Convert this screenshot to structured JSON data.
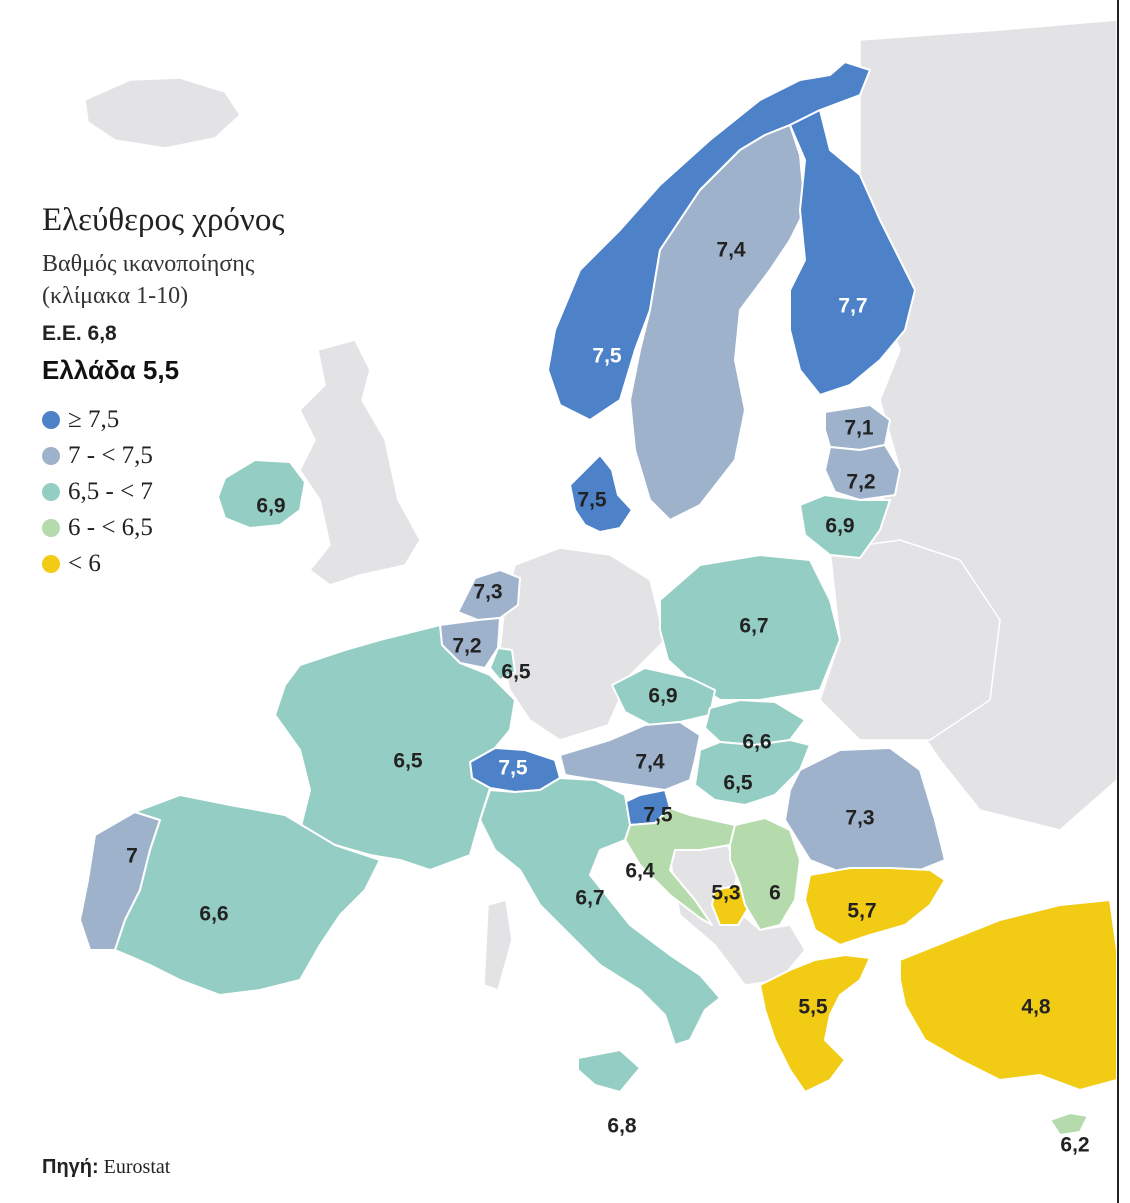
{
  "title": "Ελεύθερος χρόνος",
  "subtitle_line1": "Βαθμός ικανοποίησης",
  "subtitle_line2": "(κλίμακα 1-10)",
  "eu_value": "Ε.Ε. 6,8",
  "greece_value": "Ελλάδα 5,5",
  "legend": [
    {
      "label": "≥ 7,5",
      "color": "#4d82c8"
    },
    {
      "label": "7 - < 7,5",
      "color": "#9eb2cc"
    },
    {
      "label": "6,5 - < 7",
      "color": "#94cdc3"
    },
    {
      "label": "6 - < 6,5",
      "color": "#b5dbad"
    },
    {
      "label": "< 6",
      "color": "#f2cb14"
    }
  ],
  "source_label": "Πηγή:",
  "source_value": "Eurostat",
  "countries": [
    {
      "value": "7,5",
      "color": "#4d82c8"
    },
    {
      "value": "7,4",
      "color": "#9eb2cc"
    },
    {
      "value": "7,7",
      "color": "#4d82c8"
    },
    {
      "value": "7,1",
      "color": "#9eb2cc"
    },
    {
      "value": "7,2",
      "color": "#9eb2cc"
    },
    {
      "value": "6,9",
      "color": "#94cdc3"
    },
    {
      "value": "7,5",
      "color": "#4d82c8"
    },
    {
      "value": "6,9",
      "color": "#94cdc3"
    },
    {
      "value": "7,3",
      "color": "#9eb2cc"
    },
    {
      "value": "7,2",
      "color": "#9eb2cc"
    },
    {
      "value": "6,5",
      "color": "#94cdc3"
    },
    {
      "value": "6,7",
      "color": "#94cdc3"
    },
    {
      "value": "6,9",
      "color": "#94cdc3"
    },
    {
      "value": "6,6",
      "color": "#94cdc3"
    },
    {
      "value": "7,4",
      "color": "#9eb2cc"
    },
    {
      "value": "6,5",
      "color": "#94cdc3"
    },
    {
      "value": "7,5",
      "color": "#4d82c8"
    },
    {
      "value": "6,5",
      "color": "#94cdc3"
    },
    {
      "value": "7,5",
      "color": "#4d82c8"
    },
    {
      "value": "7,3",
      "color": "#9eb2cc"
    },
    {
      "value": "6,4",
      "color": "#b5dbad"
    },
    {
      "value": "5,3",
      "color": "#f2cb14"
    },
    {
      "value": "6",
      "color": "#b5dbad"
    },
    {
      "value": "5,7",
      "color": "#f2cb14"
    },
    {
      "value": "7",
      "color": "#9eb2cc"
    },
    {
      "value": "6,6",
      "color": "#94cdc3"
    },
    {
      "value": "6,7",
      "color": "#94cdc3"
    },
    {
      "value": "5,5",
      "color": "#f2cb14"
    },
    {
      "value": "4,8",
      "color": "#f2cb14"
    },
    {
      "value": "6,8",
      "color": "#94cdc3"
    },
    {
      "value": "6,2",
      "color": "#b5dbad"
    }
  ]
}
